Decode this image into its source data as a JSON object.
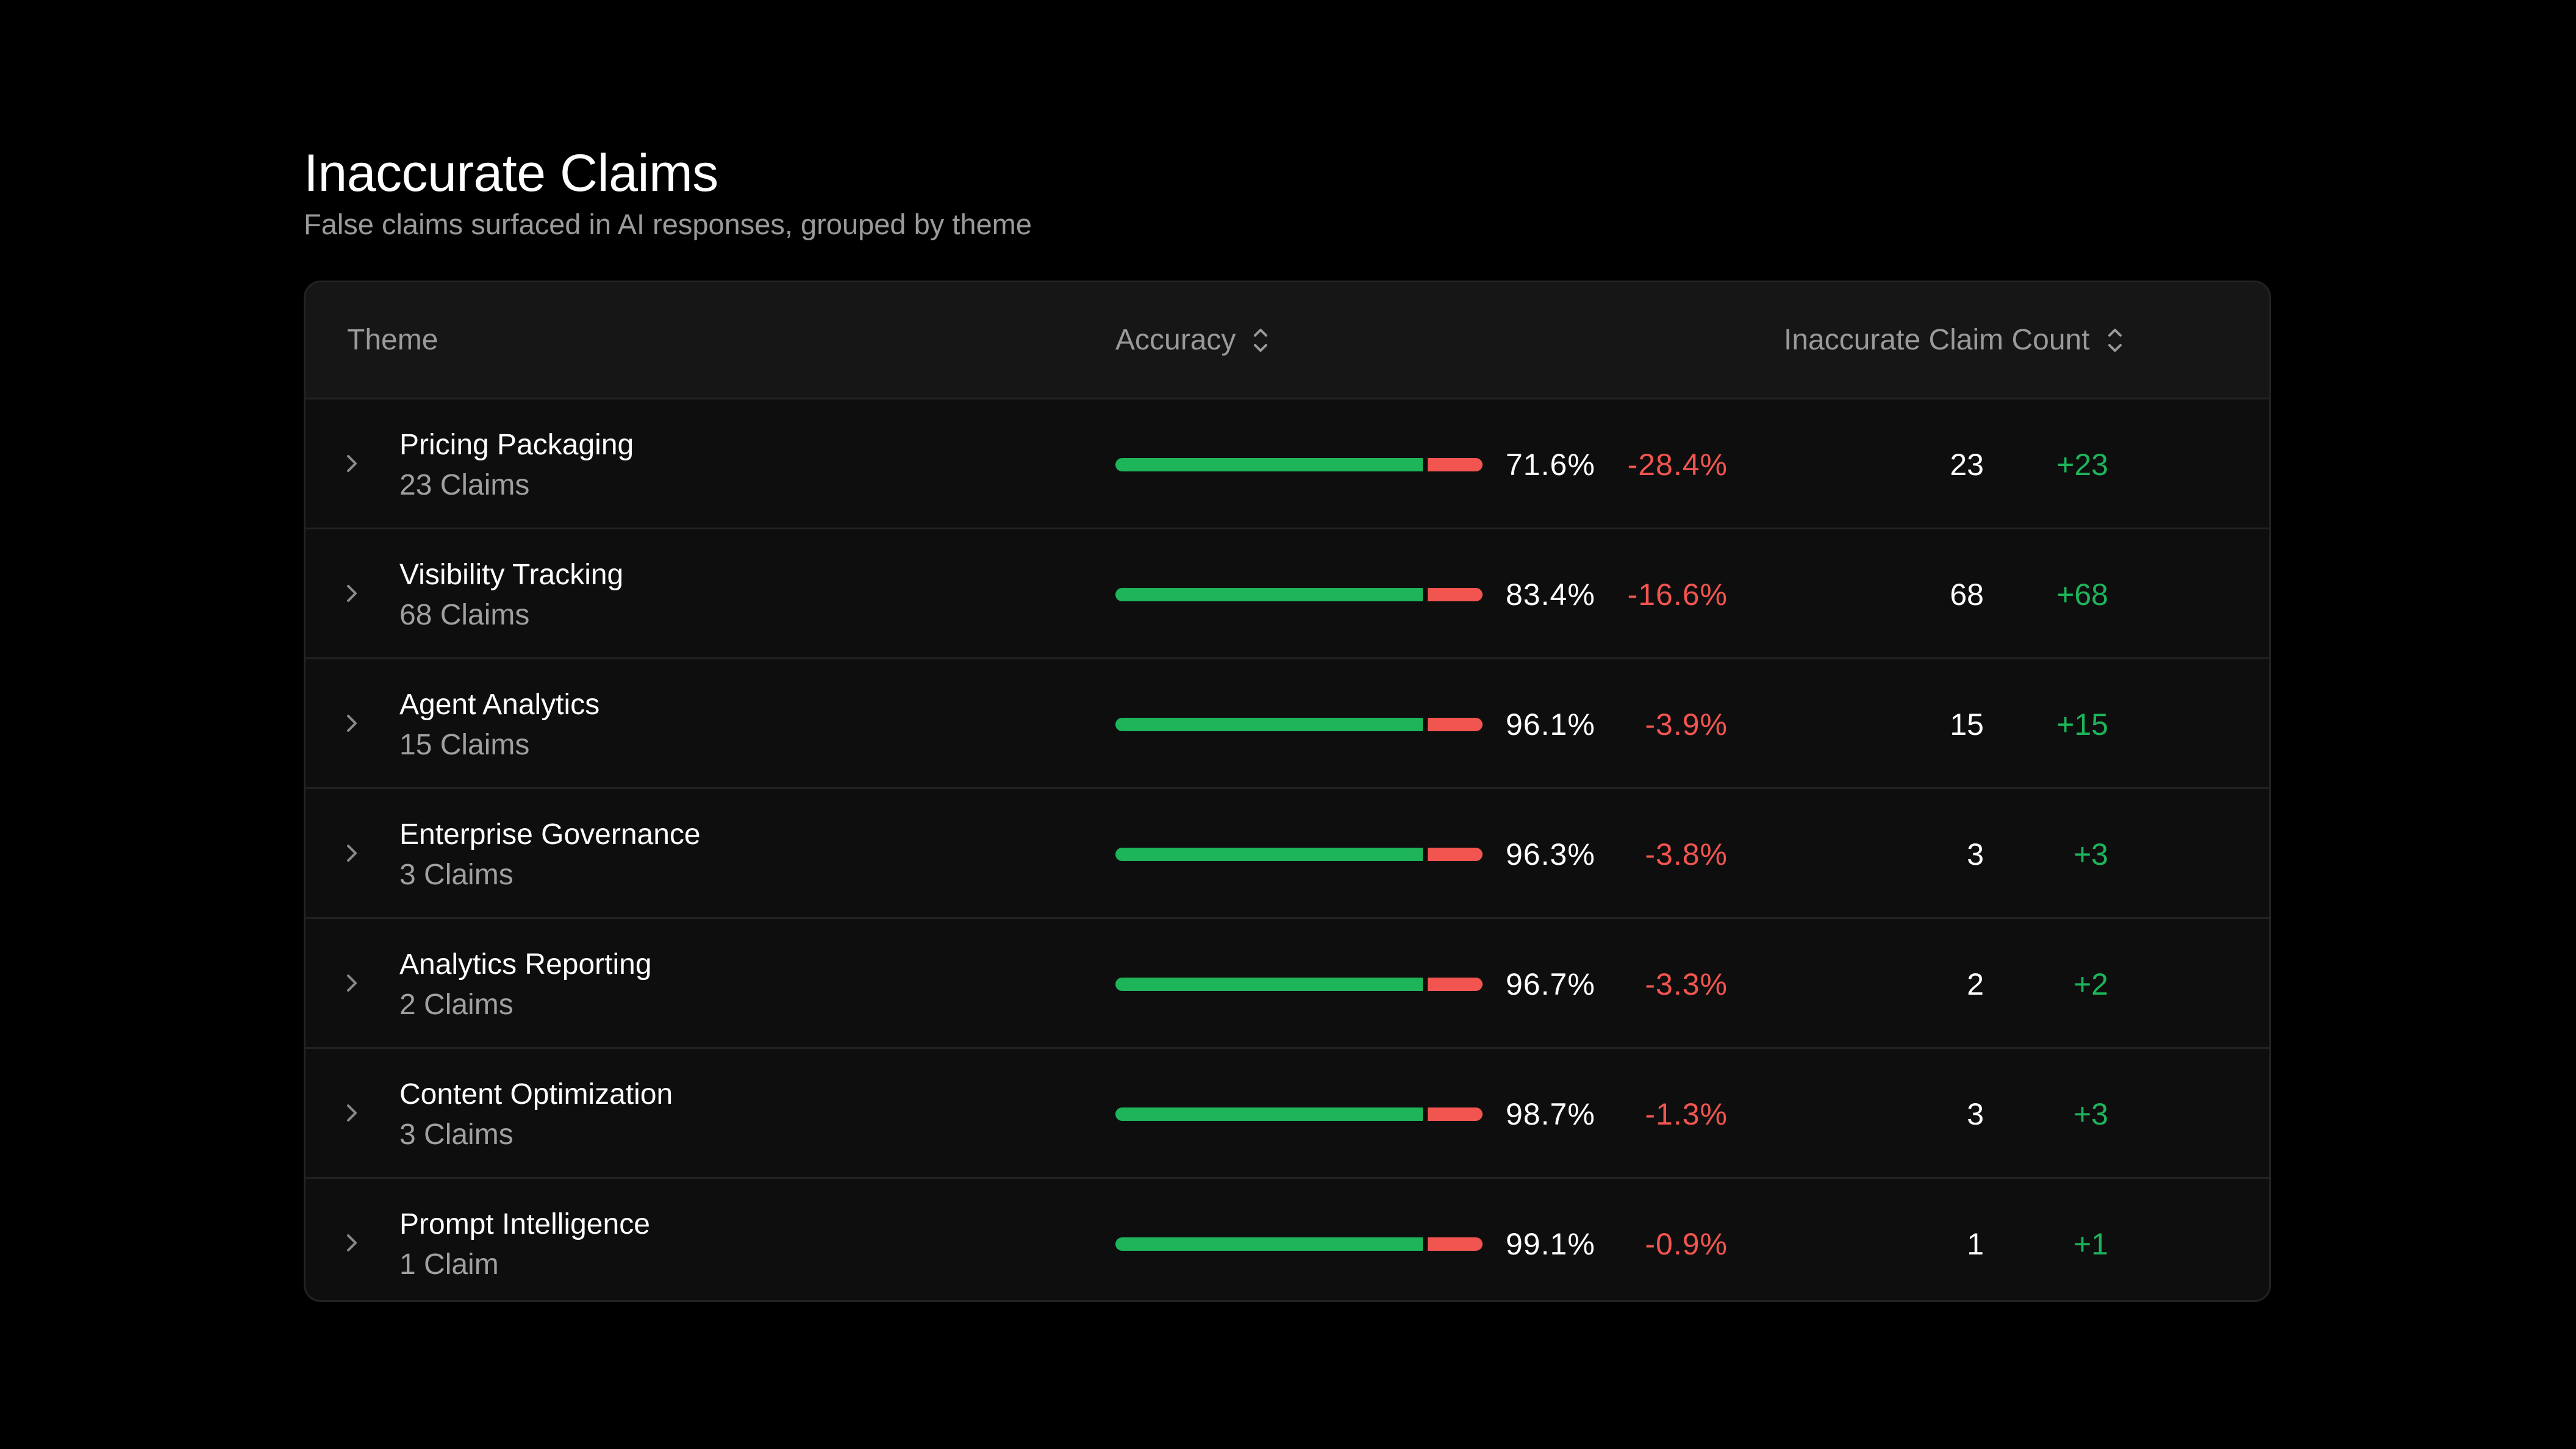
{
  "header": {
    "title": "Inaccurate Claims",
    "subtitle": "False claims surfaced in AI responses, grouped by theme"
  },
  "table": {
    "columns": {
      "theme": "Theme",
      "accuracy": "Accuracy",
      "count": "Inaccurate Claim Count"
    },
    "rows": [
      {
        "theme": "Pricing Packaging",
        "claims": "23 Claims",
        "accuracy": "71.6%",
        "accuracy_delta": "-28.4%",
        "accuracy_fraction": 0.716,
        "count": "23",
        "count_delta": "+23"
      },
      {
        "theme": "Visibility Tracking",
        "claims": "68 Claims",
        "accuracy": "83.4%",
        "accuracy_delta": "-16.6%",
        "accuracy_fraction": 0.834,
        "count": "68",
        "count_delta": "+68"
      },
      {
        "theme": "Agent Analytics",
        "claims": "15 Claims",
        "accuracy": "96.1%",
        "accuracy_delta": "-3.9%",
        "accuracy_fraction": 0.961,
        "count": "15",
        "count_delta": "+15"
      },
      {
        "theme": "Enterprise Governance",
        "claims": "3 Claims",
        "accuracy": "96.3%",
        "accuracy_delta": "-3.8%",
        "accuracy_fraction": 0.963,
        "count": "3",
        "count_delta": "+3"
      },
      {
        "theme": "Analytics Reporting",
        "claims": "2 Claims",
        "accuracy": "96.7%",
        "accuracy_delta": "-3.3%",
        "accuracy_fraction": 0.967,
        "count": "2",
        "count_delta": "+2"
      },
      {
        "theme": "Content Optimization",
        "claims": "3 Claims",
        "accuracy": "98.7%",
        "accuracy_delta": "-1.3%",
        "accuracy_fraction": 0.987,
        "count": "3",
        "count_delta": "+3"
      },
      {
        "theme": "Prompt Intelligence",
        "claims": "1 Claim",
        "accuracy": "99.1%",
        "accuracy_delta": "-0.9%",
        "accuracy_fraction": 0.991,
        "count": "1",
        "count_delta": "+1"
      }
    ]
  },
  "icons": {
    "expand": "chevron-right-icon",
    "sort": "sort-updown-icon"
  },
  "colors": {
    "background": "#000000",
    "positive": "#1db45a",
    "negative": "#f2554f",
    "muted_text": "#9a9a9a"
  }
}
